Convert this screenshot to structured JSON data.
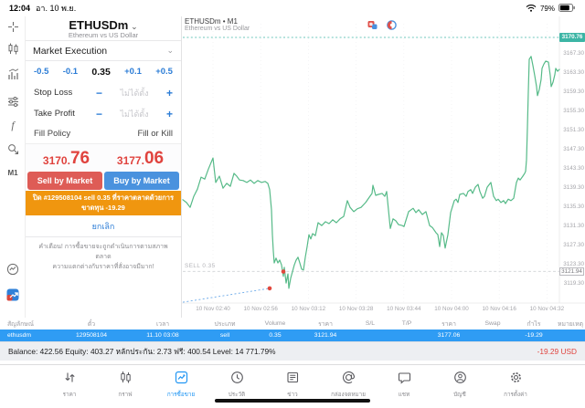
{
  "status_bar": {
    "time": "12:04",
    "date": "อา. 10 พ.ย.",
    "battery_percent": "79%"
  },
  "sidebar": {
    "timeframe": "M1"
  },
  "trade_panel": {
    "symbol": "ETHUSDm",
    "symbol_chevron": "⌄",
    "symbol_description": "Ethereum vs US Dollar",
    "order_type": "Market Execution",
    "order_type_chevron": "⌄",
    "volume": {
      "dec_big": "-0.5",
      "dec_small": "-0.1",
      "value": "0.35",
      "inc_small": "+0.1",
      "inc_big": "+0.5"
    },
    "stop_loss_label": "Stop Loss",
    "take_profit_label": "Take Profit",
    "not_set_placeholder": "ไม่ได้ตั้ง",
    "minus": "−",
    "plus": "+",
    "fill_policy_label": "Fill Policy",
    "fill_policy_value": "Fill or Kill",
    "sell_price_main": "3170.",
    "sell_price_big": "76",
    "buy_price_main": "3177.",
    "buy_price_big": "06",
    "sell_button": "Sell by Market",
    "buy_button": "Buy by Market",
    "close_banner_line1": "ปิด #129508104 sell 0.35 ที่ราคาตลาดด้วยการ",
    "close_banner_line2": "ขาดทุน -19.29",
    "cancel_label": "ยกเลิก",
    "warning_line1": "คำเตือน! การซื้อขายจะถูกดำเนินการตามสภาพตลาด",
    "warning_line2": "ความแตกต่างกับราคาที่สั่งอาจมีมาก!"
  },
  "chart": {
    "title": "ETHUSDm • M1",
    "subtitle": "Ethereum vs US Dollar",
    "bid_price": "3170.76",
    "position_line_label": "SELL 0.35",
    "position_open_price": "3121.94",
    "price_axis": [
      "3167.30",
      "3163.30",
      "3159.30",
      "3155.30",
      "3151.30",
      "3147.30",
      "3143.30",
      "3139.30",
      "3135.30",
      "3131.30",
      "3127.30",
      "3123.30",
      "3119.30"
    ],
    "time_axis": [
      "10 Nov 02:40",
      "10 Nov 02:56",
      "10 Nov 03:12",
      "10 Nov 03:28",
      "10 Nov 03:44",
      "10 Nov 04:00",
      "10 Nov 04:16",
      "10 Nov 04:32"
    ],
    "colors": {
      "line": "#56ba88",
      "bid": "#3cb5a5",
      "open_line": "#cfd2d6",
      "marker": "#e2483d",
      "trend": "#6aa9e9",
      "grid": "#f0f0f2",
      "axis": "#ececee"
    },
    "chart_data": {
      "type": "line",
      "ylim": [
        3117,
        3172
      ],
      "series": [
        {
          "name": "ETHUSDm M1",
          "points": [
            [
              200,
              3136.9
            ],
            [
              204,
              3136.3
            ],
            [
              208,
              3135.3
            ],
            [
              212,
              3137.6
            ],
            [
              216,
              3139.1
            ],
            [
              220,
              3141.6
            ],
            [
              224,
              3141.2
            ],
            [
              228,
              3143.3
            ],
            [
              233,
              3145.6
            ],
            [
              236,
              3140.5
            ],
            [
              240,
              3141.8
            ],
            [
              244,
              3139.3
            ],
            [
              248,
              3140.3
            ],
            [
              252,
              3139.7
            ],
            [
              256,
              3142.4
            ],
            [
              259,
              3141.8
            ],
            [
              262,
              3141.0
            ],
            [
              266,
              3140.9
            ],
            [
              270,
              3140.5
            ],
            [
              274,
              3141.0
            ],
            [
              278,
              3140.3
            ],
            [
              282,
              3140.9
            ],
            [
              286,
              3140.5
            ],
            [
              290,
              3140.7
            ],
            [
              293,
              3140.3
            ],
            [
              295,
              3139.0
            ],
            [
              297,
              3134.8
            ],
            [
              298,
              3129.6
            ],
            [
              299,
              3126.2
            ],
            [
              300,
              3123.7
            ],
            [
              302,
              3124.7
            ],
            [
              304,
              3123.7
            ],
            [
              306,
              3124.3
            ],
            [
              308,
              3123.3
            ],
            [
              310,
              3120.9
            ],
            [
              311,
              3122.8
            ],
            [
              313,
              3119.5
            ],
            [
              315,
              3121.4
            ],
            [
              316,
              3118.4
            ],
            [
              318,
              3120.5
            ],
            [
              320,
              3121.9
            ],
            [
              322,
              3123.3
            ],
            [
              324,
              3124.3
            ],
            [
              326,
              3124.9
            ],
            [
              328,
              3123.7
            ],
            [
              330,
              3122.4
            ],
            [
              332,
              3122.2
            ],
            [
              334,
              3124.9
            ],
            [
              336,
              3127.1
            ],
            [
              338,
              3129.6
            ],
            [
              340,
              3128.7
            ],
            [
              342,
              3129.8
            ],
            [
              345,
              3129.4
            ],
            [
              348,
              3132.1
            ],
            [
              352,
              3131.5
            ],
            [
              356,
              3132.3
            ],
            [
              360,
              3131.9
            ],
            [
              364,
              3132.7
            ],
            [
              368,
              3132.1
            ],
            [
              372,
              3132.9
            ],
            [
              376,
              3133.4
            ],
            [
              380,
              3136.7
            ],
            [
              383,
              3135.3
            ],
            [
              387,
              3134.4
            ],
            [
              391,
              3135.0
            ],
            [
              395,
              3135.3
            ],
            [
              400,
              3136.3
            ],
            [
              404,
              3137.4
            ],
            [
              407,
              3138.2
            ],
            [
              408,
              3139.9
            ],
            [
              411,
              3137.8
            ],
            [
              414,
              3138.0
            ],
            [
              418,
              3138.2
            ],
            [
              421,
              3137.6
            ],
            [
              423,
              3138.6
            ],
            [
              427,
              3130.9
            ],
            [
              430,
              3132.9
            ],
            [
              433,
              3132.5
            ],
            [
              436,
              3131.7
            ],
            [
              440,
              3131.5
            ],
            [
              442,
              3131.3
            ],
            [
              447,
              3134.4
            ],
            [
              452,
              3135.1
            ],
            [
              455,
              3134.2
            ],
            [
              458,
              3134.8
            ],
            [
              462,
              3133.8
            ],
            [
              466,
              3134.4
            ],
            [
              470,
              3131.5
            ],
            [
              473,
              3131.1
            ],
            [
              477,
              3130.0
            ],
            [
              479,
              3129.6
            ],
            [
              481,
              3127.1
            ],
            [
              483,
              3130.0
            ],
            [
              485,
              3129.4
            ],
            [
              487,
              3126.8
            ],
            [
              490,
              3129.6
            ],
            [
              493,
              3134.2
            ],
            [
              497,
              3136.7
            ],
            [
              499,
              3137.0
            ],
            [
              501,
              3136.3
            ],
            [
              503,
              3138.0
            ],
            [
              507,
              3138.2
            ],
            [
              510,
              3137.6
            ],
            [
              512,
              3138.6
            ],
            [
              515,
              3139.0
            ],
            [
              517,
              3138.2
            ],
            [
              520,
              3139.5
            ],
            [
              523,
              3140.1
            ],
            [
              525,
              3138.6
            ],
            [
              528,
              3137.2
            ],
            [
              530,
              3137.6
            ],
            [
              533,
              3139.5
            ],
            [
              537,
              3140.5
            ],
            [
              540,
              3137.6
            ],
            [
              543,
              3136.7
            ],
            [
              545,
              3137.0
            ],
            [
              548,
              3136.3
            ],
            [
              551,
              3136.7
            ],
            [
              553,
              3136.1
            ],
            [
              556,
              3137.0
            ],
            [
              559,
              3136.7
            ],
            [
              562,
              3137.2
            ],
            [
              565,
              3140.5
            ],
            [
              567,
              3141.4
            ],
            [
              569,
              3141.0
            ],
            [
              572,
              3141.8
            ],
            [
              574,
              3142.4
            ],
            [
              575,
              3142.8
            ],
            [
              576,
              3145.2
            ],
            [
              577,
              3151.9
            ],
            [
              578,
              3159.5
            ],
            [
              579,
              3166.2
            ],
            [
              581,
              3166.8
            ],
            [
              583,
              3164.9
            ],
            [
              585,
              3162.8
            ],
            [
              587,
              3160.5
            ],
            [
              588,
              3158.6
            ],
            [
              590,
              3159.9
            ],
            [
              592,
              3162.0
            ],
            [
              593,
              3164.3
            ],
            [
              595,
              3165.2
            ],
            [
              597,
              3165.8
            ],
            [
              600,
              3165.6
            ],
            [
              602,
              3162.8
            ],
            [
              603,
              3160.5
            ],
            [
              605,
              3161.4
            ],
            [
              607,
              3163.0
            ],
            [
              608,
              3164.3
            ],
            [
              610,
              3163.7
            ],
            [
              612,
              3164.1
            ]
          ]
        }
      ],
      "sell_markers": [
        [
          295,
          3118.4
        ],
        [
          310,
          3121.9
        ]
      ],
      "trend_line": [
        [
          200,
          3115.5
        ],
        [
          295,
          3118.4
        ]
      ]
    }
  },
  "positions_table": {
    "headers": [
      "สัญลักษณ์",
      "ตั๋ว",
      "เวลา",
      "ประเภท",
      "Volume",
      "ราคา",
      "S/L",
      "T/P",
      "ราคา",
      "Swap",
      "กำไร",
      "หมายเหตุ"
    ],
    "row": [
      "ethusdm",
      "129508104",
      "11.10 03:08",
      "sell",
      "0.35",
      "3121.94",
      "",
      "",
      "3177.06",
      "",
      "-19.29",
      ""
    ]
  },
  "account_bar": {
    "summary": "Balance: 422.56 Equity: 403.27 หลักประกัน: 2.73 ฟรี: 400.54 Level: 14 771.79%",
    "profit": "-19.29",
    "currency": "USD"
  },
  "nav_bar": {
    "items": [
      {
        "label": "ราคา",
        "icon": "updown-arrows"
      },
      {
        "label": "กราฟ",
        "icon": "candlestick-chart"
      },
      {
        "label": "การซื้อขาย",
        "icon": "trade-chart",
        "active": true
      },
      {
        "label": "ประวัติ",
        "icon": "clock"
      },
      {
        "label": "ข่าว",
        "icon": "newspaper"
      },
      {
        "label": "กล่องจดหมาย",
        "icon": "at-sign"
      },
      {
        "label": "แชท",
        "icon": "chat-bubble"
      },
      {
        "label": "บัญชี",
        "icon": "person"
      },
      {
        "label": "การตั้งค่า",
        "icon": "gear"
      }
    ]
  }
}
